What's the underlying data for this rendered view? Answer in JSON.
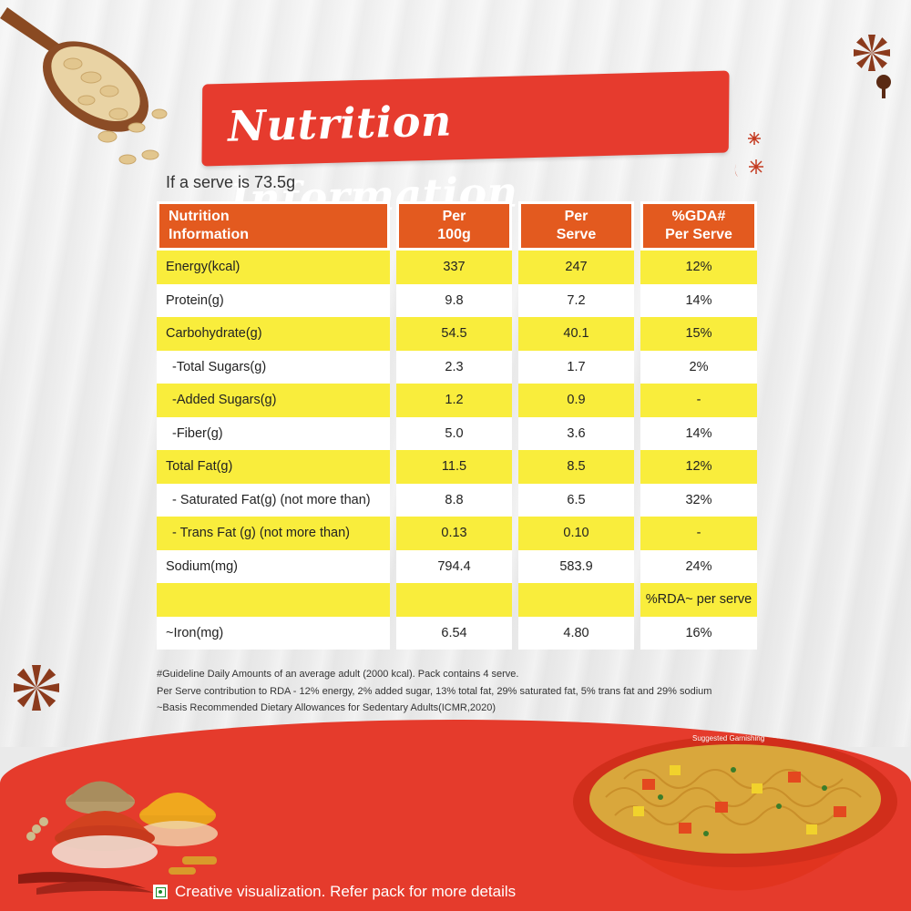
{
  "banner": {
    "title": "Nutrition Information"
  },
  "serve_note": "If a serve is 73.5g",
  "table": {
    "headers": [
      "Nutrition\nInformation",
      "Per\n100g",
      "Per\nServe",
      "%GDA#\nPer Serve"
    ],
    "rows": [
      {
        "label": "Energy(kcal)",
        "per100": "337",
        "serve": "247",
        "gda": "12%"
      },
      {
        "label": "Protein(g)",
        "per100": "9.8",
        "serve": "7.2",
        "gda": "14%"
      },
      {
        "label": "Carbohydrate(g)",
        "per100": "54.5",
        "serve": "40.1",
        "gda": "15%"
      },
      {
        "label": "-Total Sugars(g)",
        "per100": "2.3",
        "serve": "1.7",
        "gda": "2%"
      },
      {
        "label": "-Added Sugars(g)",
        "per100": "1.2",
        "serve": "0.9",
        "gda": "-"
      },
      {
        "label": "-Fiber(g)",
        "per100": "5.0",
        "serve": "3.6",
        "gda": "14%"
      },
      {
        "label": "Total Fat(g)",
        "per100": "11.5",
        "serve": "8.5",
        "gda": "12%"
      },
      {
        "label": "- Saturated Fat(g) (not more than)",
        "per100": "8.8",
        "serve": "6.5",
        "gda": "32%"
      },
      {
        "label": "- Trans Fat (g) (not more than)",
        "per100": "0.13",
        "serve": "0.10",
        "gda": "-"
      },
      {
        "label": "Sodium(mg)",
        "per100": "794.4",
        "serve": "583.9",
        "gda": "24%"
      },
      {
        "label": "",
        "per100": "",
        "serve": "",
        "gda": "%RDA~ per serve"
      },
      {
        "label": "~Iron(mg)",
        "per100": "6.54",
        "serve": "4.80",
        "gda": "16%"
      }
    ]
  },
  "footnotes": [
    "#Guideline Daily Amounts of an average adult (2000 kcal). Pack contains 4 serve.",
    "Per Serve contribution to RDA - 12% energy, 2% added sugar, 13% total fat, 29% saturated fat, 5% trans fat and 29% sodium",
    "~Basis Recommended Dietary Allowances for Sedentary Adults(ICMR,2020)"
  ],
  "bowl_label": "Suggested Garnishing",
  "disclaimer": "Creative visualization. Refer pack for more details",
  "colors": {
    "banner": "#e63b2e",
    "header": "#e35a1f",
    "row_yellow": "#f9ed3c",
    "bottom": "#e53b2c"
  }
}
